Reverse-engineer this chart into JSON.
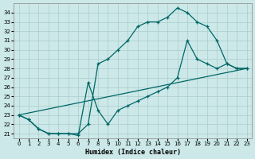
{
  "xlabel": "Humidex (Indice chaleur)",
  "bg_color": "#cce8e8",
  "line_color": "#006666",
  "grid_color": "#aacccc",
  "xlim": [
    -0.5,
    23.5
  ],
  "ylim": [
    20.5,
    35.0
  ],
  "yticks": [
    21,
    22,
    23,
    24,
    25,
    26,
    27,
    28,
    29,
    30,
    31,
    32,
    33,
    34
  ],
  "xticks": [
    0,
    1,
    2,
    3,
    4,
    5,
    6,
    7,
    8,
    9,
    10,
    11,
    12,
    13,
    14,
    15,
    16,
    17,
    18,
    19,
    20,
    21,
    22,
    23
  ],
  "line1_x": [
    0,
    1,
    2,
    3,
    4,
    5,
    6,
    7,
    8,
    9,
    10,
    11,
    12,
    13,
    14,
    15,
    16,
    17,
    18,
    19,
    20,
    21,
    22,
    23
  ],
  "line1_y": [
    23.0,
    22.5,
    21.5,
    21.0,
    21.0,
    21.0,
    21.0,
    22.0,
    28.5,
    29.0,
    30.0,
    31.0,
    32.5,
    33.0,
    33.0,
    33.5,
    34.5,
    34.0,
    33.0,
    32.5,
    31.0,
    28.5,
    28.0,
    28.0
  ],
  "line2_x": [
    0,
    1,
    2,
    3,
    4,
    5,
    6,
    7,
    8,
    9,
    10,
    11,
    12,
    13,
    14,
    15,
    16,
    17,
    18,
    19,
    20,
    21,
    22,
    23
  ],
  "line2_y": [
    23.0,
    22.5,
    21.5,
    21.0,
    21.0,
    21.0,
    20.8,
    26.5,
    23.5,
    22.0,
    23.5,
    24.0,
    24.5,
    25.0,
    25.5,
    26.0,
    27.0,
    31.0,
    29.0,
    28.5,
    28.0,
    28.5,
    28.0,
    28.0
  ],
  "line3_x": [
    0,
    23
  ],
  "line3_y": [
    23.0,
    28.0
  ]
}
